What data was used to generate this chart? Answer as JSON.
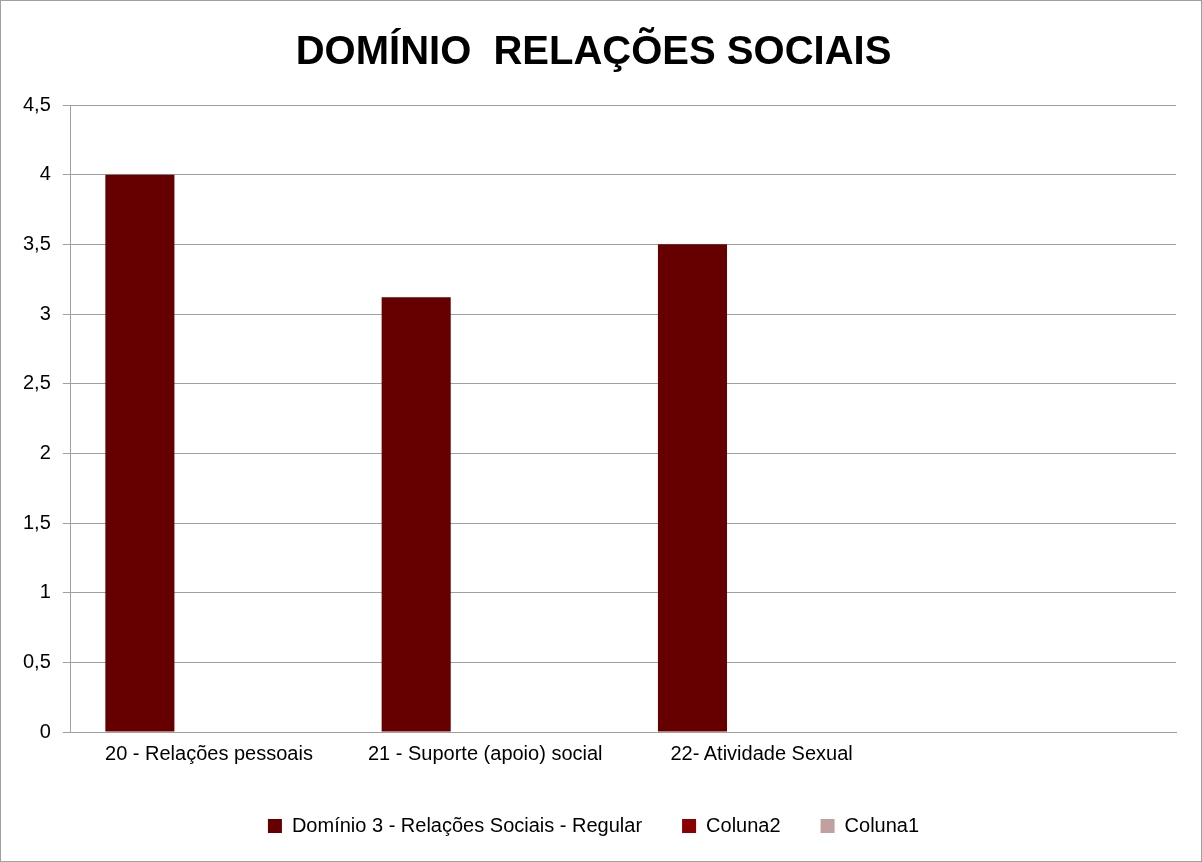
{
  "chart_data": {
    "type": "bar",
    "title": "DOMÍNIO  RELAÇÕES SOCIAIS",
    "categories": [
      "20 - Relações pessoais",
      "21 - Suporte (apoio) social",
      "22- Atividade Sexual",
      null
    ],
    "series": [
      {
        "name": "Domínio 3 - Relações Sociais - Regular",
        "color": "#660000",
        "values": [
          4,
          3.12,
          3.5,
          null
        ]
      },
      {
        "name": "Coluna2",
        "color": "#8b0000",
        "values": [
          null,
          null,
          null,
          null
        ]
      },
      {
        "name": "Coluna1",
        "color": "#c0a0a0",
        "values": [
          null,
          null,
          null,
          null
        ]
      }
    ],
    "ylim": [
      0,
      4.5
    ],
    "yticks": [
      0,
      {
        "value": 0.5,
        "label": "0,5"
      },
      1,
      {
        "value": 1.5,
        "label": "1,5"
      },
      2,
      {
        "value": 2.5,
        "label": "2,5"
      },
      3,
      {
        "value": 3.5,
        "label": "3,5"
      },
      4,
      {
        "value": 4.5,
        "label": "4,5"
      }
    ],
    "grid": "y",
    "legend": "bottom"
  }
}
